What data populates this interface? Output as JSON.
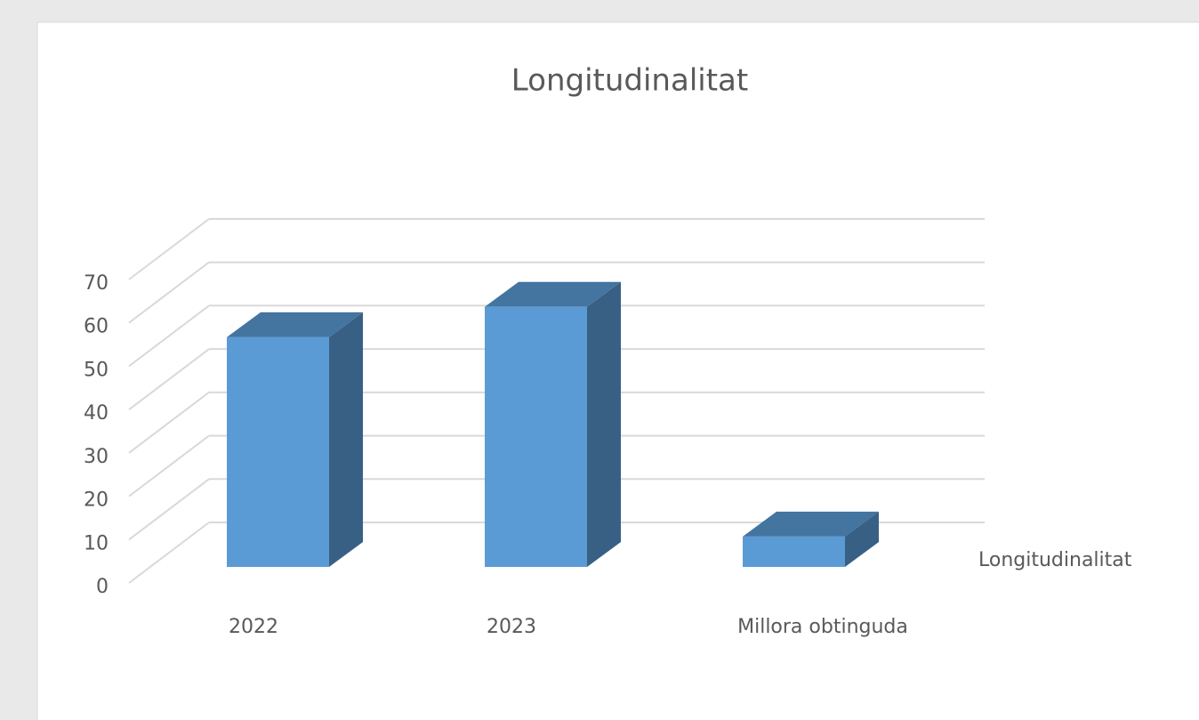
{
  "chart_data": {
    "type": "bar",
    "title": "Longitudinalitat",
    "categories": [
      "2022",
      "2023",
      "Millora obtinguda"
    ],
    "series": [
      {
        "name": "Longitudinalitat",
        "color": "#5b9bd5",
        "values": [
          53,
          60,
          7
        ]
      }
    ],
    "ylim": [
      0,
      70
    ],
    "yticks": [
      0,
      10,
      20,
      30,
      40,
      50,
      60,
      70
    ],
    "grid": true,
    "legend": "right"
  }
}
